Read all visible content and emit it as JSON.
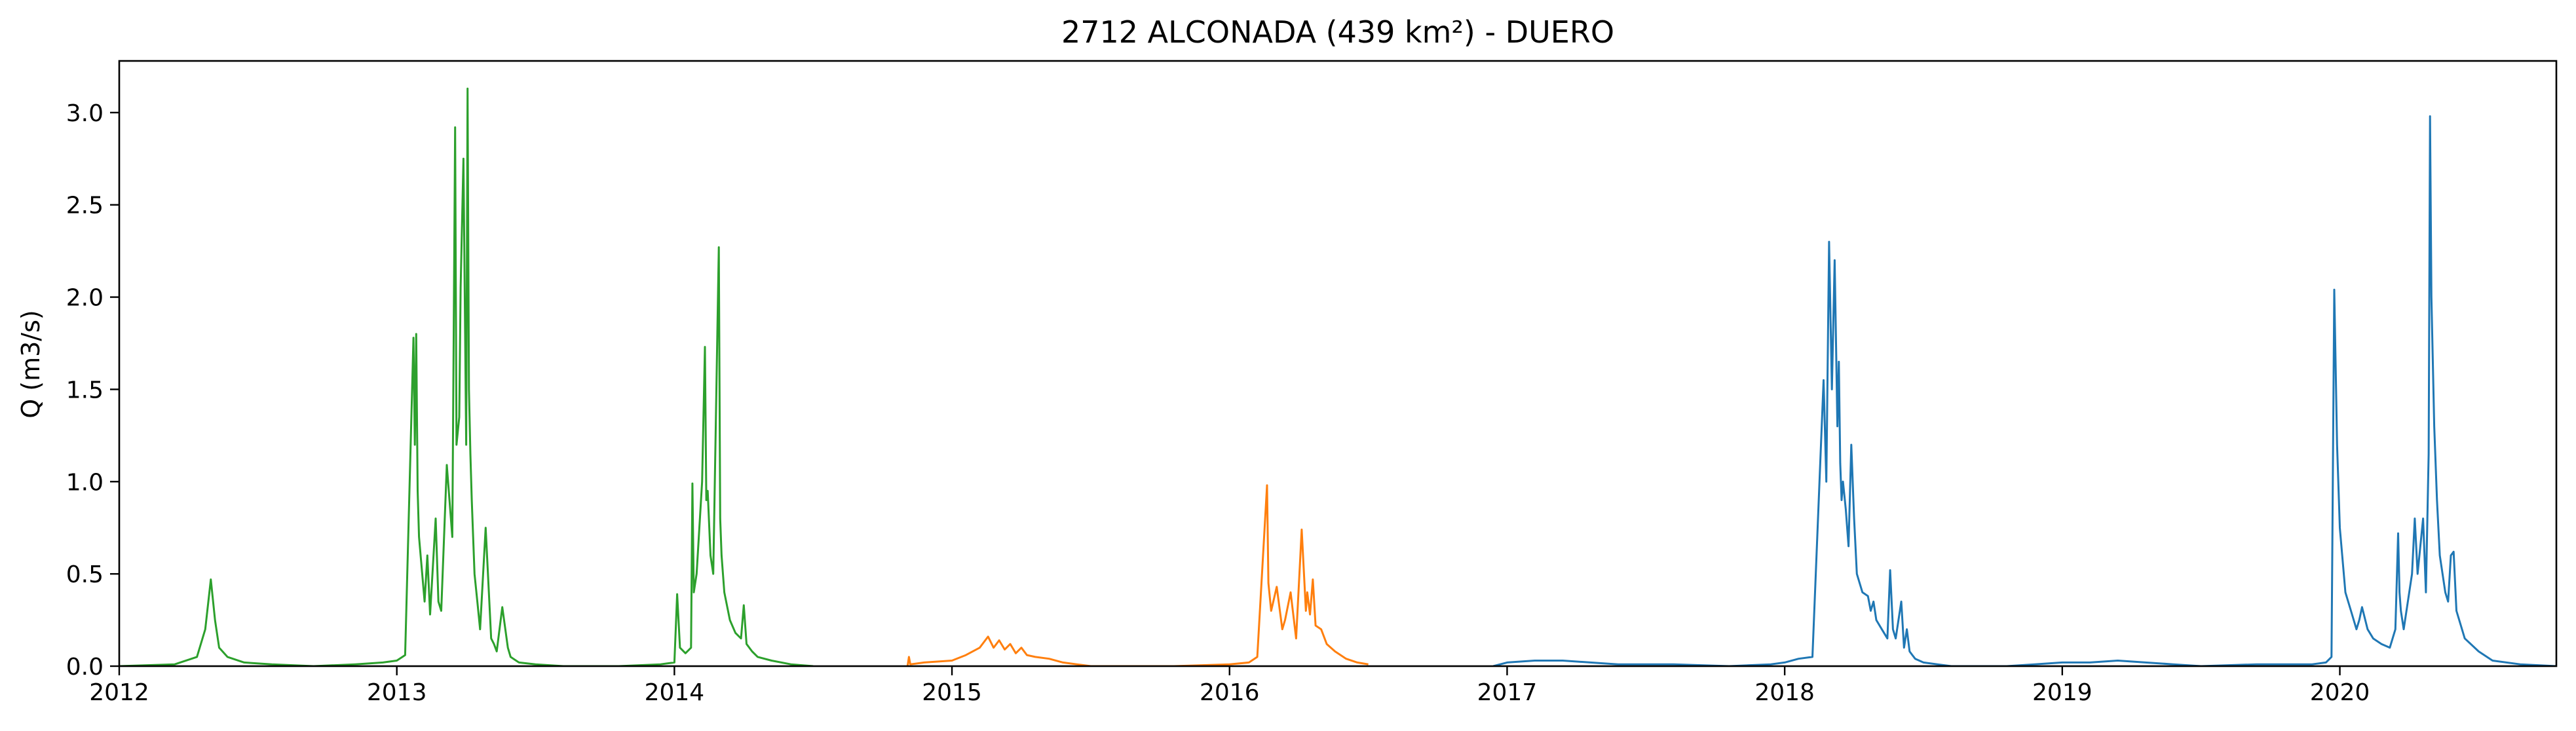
{
  "chart_data": {
    "type": "line",
    "title": "2712 ALCONADA (439 km²) - DUERO",
    "xlabel": "",
    "ylabel": "Q (m3/s)",
    "xlim": [
      2012.0,
      2020.78
    ],
    "ylim": [
      0.0,
      3.28
    ],
    "x_ticks": [
      2012,
      2013,
      2014,
      2015,
      2016,
      2017,
      2018,
      2019,
      2020
    ],
    "x_tick_labels": [
      "2012",
      "2013",
      "2014",
      "2015",
      "2016",
      "2017",
      "2018",
      "2019",
      "2020"
    ],
    "y_ticks": [
      0.0,
      0.5,
      1.0,
      1.5,
      2.0,
      2.5,
      3.0
    ],
    "y_tick_labels": [
      "0.0",
      "0.5",
      "1.0",
      "1.5",
      "2.0",
      "2.5",
      "3.0"
    ],
    "grid": false,
    "legend": "none",
    "colors": {
      "series_1": "#2ca02c",
      "series_2": "#ff7f0e",
      "series_3": "#1f77b4"
    },
    "series": [
      {
        "color": "#2ca02c",
        "x": [
          2012.0,
          2012.2,
          2012.28,
          2012.31,
          2012.33,
          2012.345,
          2012.36,
          2012.39,
          2012.45,
          2012.55,
          2012.7,
          2012.85,
          2012.95,
          2013.0,
          2013.03,
          2013.06,
          2013.065,
          2013.07,
          2013.075,
          2013.08,
          2013.1,
          2013.11,
          2013.12,
          2013.14,
          2013.15,
          2013.16,
          2013.18,
          2013.2,
          2013.21,
          2013.215,
          2013.225,
          2013.23,
          2013.24,
          2013.25,
          2013.255,
          2013.26,
          2013.265,
          2013.27,
          2013.275,
          2013.28,
          2013.29,
          2013.3,
          2013.32,
          2013.34,
          2013.35,
          2013.36,
          2013.38,
          2013.4,
          2013.41,
          2013.42,
          2013.44,
          2013.5,
          2013.6,
          2013.8,
          2013.95,
          2014.0,
          2014.01,
          2014.02,
          2014.04,
          2014.06,
          2014.065,
          2014.07,
          2014.08,
          2014.1,
          2014.11,
          2014.115,
          2014.12,
          2014.13,
          2014.14,
          2014.16,
          2014.165,
          2014.17,
          2014.18,
          2014.2,
          2014.22,
          2014.24,
          2014.25,
          2014.26,
          2014.28,
          2014.3,
          2014.35,
          2014.42,
          2014.5
        ],
        "values": [
          0.0,
          0.01,
          0.05,
          0.2,
          0.47,
          0.25,
          0.1,
          0.05,
          0.02,
          0.01,
          0.0,
          0.01,
          0.02,
          0.03,
          0.06,
          1.78,
          1.2,
          1.8,
          0.95,
          0.7,
          0.35,
          0.6,
          0.28,
          0.8,
          0.35,
          0.3,
          1.09,
          0.7,
          2.92,
          1.2,
          1.35,
          2.05,
          2.75,
          1.2,
          3.13,
          1.5,
          1.15,
          0.9,
          0.7,
          0.5,
          0.35,
          0.2,
          0.75,
          0.15,
          0.12,
          0.08,
          0.32,
          0.1,
          0.05,
          0.04,
          0.02,
          0.01,
          0.0,
          0.0,
          0.01,
          0.02,
          0.39,
          0.1,
          0.07,
          0.1,
          0.99,
          0.4,
          0.5,
          1.0,
          1.73,
          0.9,
          0.95,
          0.6,
          0.5,
          2.27,
          0.8,
          0.6,
          0.4,
          0.25,
          0.18,
          0.15,
          0.33,
          0.12,
          0.08,
          0.05,
          0.03,
          0.01,
          0.0
        ]
      },
      {
        "color": "#ff7f0e",
        "x": [
          2014.84,
          2014.845,
          2014.85,
          2014.9,
          2015.0,
          2015.05,
          2015.1,
          2015.13,
          2015.15,
          2015.17,
          2015.19,
          2015.21,
          2015.23,
          2015.25,
          2015.27,
          2015.3,
          2015.35,
          2015.4,
          2015.45,
          2015.5,
          2015.6,
          2015.8,
          2016.0,
          2016.07,
          2016.1,
          2016.135,
          2016.14,
          2016.15,
          2016.17,
          2016.19,
          2016.2,
          2016.22,
          2016.24,
          2016.26,
          2016.275,
          2016.28,
          2016.29,
          2016.3,
          2016.31,
          2016.33,
          2016.35,
          2016.38,
          2016.42,
          2016.46,
          2016.5
        ],
        "values": [
          0.0,
          0.05,
          0.01,
          0.02,
          0.03,
          0.06,
          0.1,
          0.16,
          0.1,
          0.14,
          0.09,
          0.12,
          0.07,
          0.1,
          0.06,
          0.05,
          0.04,
          0.02,
          0.01,
          0.0,
          0.0,
          0.0,
          0.01,
          0.02,
          0.05,
          0.98,
          0.45,
          0.3,
          0.43,
          0.2,
          0.25,
          0.4,
          0.15,
          0.74,
          0.3,
          0.4,
          0.28,
          0.47,
          0.22,
          0.2,
          0.12,
          0.08,
          0.04,
          0.02,
          0.01
        ]
      },
      {
        "color": "#1f77b4",
        "x": [
          2016.95,
          2017.0,
          2017.1,
          2017.2,
          2017.3,
          2017.4,
          2017.6,
          2017.8,
          2017.95,
          2018.0,
          2018.05,
          2018.1,
          2018.14,
          2018.15,
          2018.16,
          2018.17,
          2018.18,
          2018.19,
          2018.195,
          2018.2,
          2018.205,
          2018.21,
          2018.22,
          2018.23,
          2018.24,
          2018.25,
          2018.26,
          2018.28,
          2018.3,
          2018.31,
          2018.32,
          2018.33,
          2018.35,
          2018.37,
          2018.38,
          2018.39,
          2018.4,
          2018.42,
          2018.43,
          2018.44,
          2018.45,
          2018.46,
          2018.47,
          2018.5,
          2018.55,
          2018.6,
          2018.8,
          2018.9,
          2019.0,
          2019.1,
          2019.2,
          2019.3,
          2019.4,
          2019.5,
          2019.7,
          2019.9,
          2019.95,
          2019.97,
          2019.98,
          2019.99,
          2020.0,
          2020.02,
          2020.04,
          2020.06,
          2020.07,
          2020.08,
          2020.1,
          2020.12,
          2020.15,
          2020.18,
          2020.2,
          2020.21,
          2020.215,
          2020.22,
          2020.23,
          2020.26,
          2020.27,
          2020.28,
          2020.3,
          2020.31,
          2020.32,
          2020.325,
          2020.33,
          2020.34,
          2020.35,
          2020.36,
          2020.38,
          2020.39,
          2020.4,
          2020.41,
          2020.42,
          2020.45,
          2020.5,
          2020.55,
          2020.65,
          2020.78
        ],
        "values": [
          0.0,
          0.02,
          0.03,
          0.03,
          0.02,
          0.01,
          0.01,
          0.0,
          0.01,
          0.02,
          0.04,
          0.05,
          1.55,
          1.0,
          2.3,
          1.5,
          2.2,
          1.3,
          1.65,
          1.1,
          0.9,
          1.0,
          0.85,
          0.65,
          1.2,
          0.8,
          0.5,
          0.4,
          0.38,
          0.3,
          0.35,
          0.25,
          0.2,
          0.15,
          0.52,
          0.2,
          0.15,
          0.35,
          0.1,
          0.2,
          0.08,
          0.06,
          0.04,
          0.02,
          0.01,
          0.0,
          0.0,
          0.01,
          0.02,
          0.02,
          0.03,
          0.02,
          0.01,
          0.0,
          0.01,
          0.01,
          0.02,
          0.05,
          2.04,
          1.2,
          0.75,
          0.4,
          0.3,
          0.2,
          0.25,
          0.32,
          0.2,
          0.15,
          0.12,
          0.1,
          0.2,
          0.72,
          0.4,
          0.3,
          0.2,
          0.5,
          0.8,
          0.5,
          0.8,
          0.4,
          1.15,
          2.98,
          2.0,
          1.3,
          0.9,
          0.6,
          0.4,
          0.35,
          0.6,
          0.62,
          0.3,
          0.15,
          0.08,
          0.03,
          0.01,
          0.0
        ]
      }
    ]
  }
}
